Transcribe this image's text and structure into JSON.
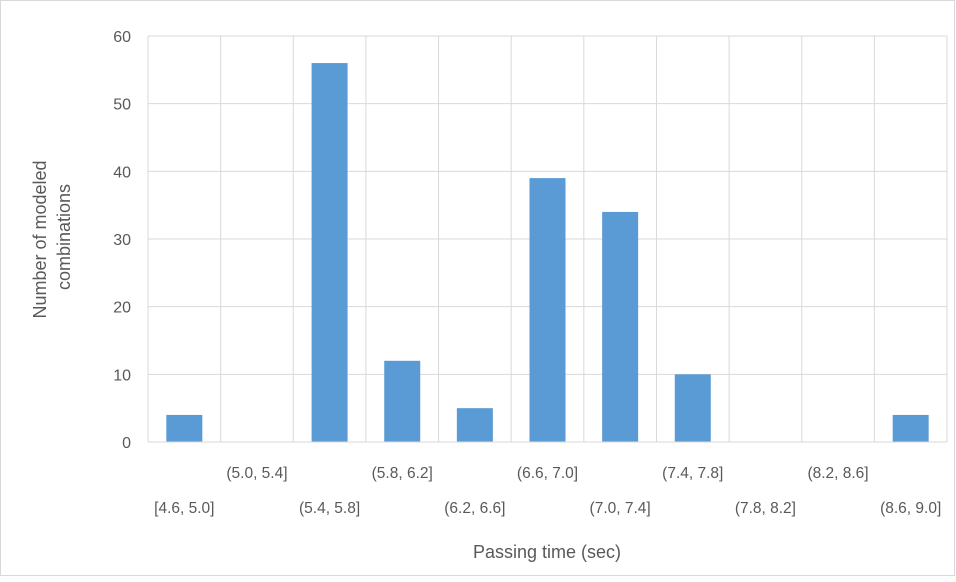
{
  "chart_data": {
    "type": "bar",
    "categories": [
      "[4.6, 5.0]",
      "(5.0, 5.4]",
      "(5.4, 5.8]",
      "(5.8, 6.2]",
      "(6.2, 6.6]",
      "(6.6, 7.0]",
      "(7.0, 7.4]",
      "(7.4, 7.8]",
      "(7.8, 8.2]",
      "(8.2, 8.6]",
      "(8.6, 9.0]"
    ],
    "values": [
      4,
      0,
      56,
      12,
      5,
      39,
      34,
      10,
      0,
      0,
      4
    ],
    "title": "",
    "xlabel": "Passing time (sec)",
    "ylabel_lines": [
      "Number of modeled",
      "combinations"
    ],
    "ylim": [
      0,
      60
    ],
    "yticks": [
      0,
      10,
      20,
      30,
      40,
      50,
      60
    ],
    "grid": true,
    "bar_color": "#5b9bd5",
    "grid_color": "#d9d9d9"
  }
}
